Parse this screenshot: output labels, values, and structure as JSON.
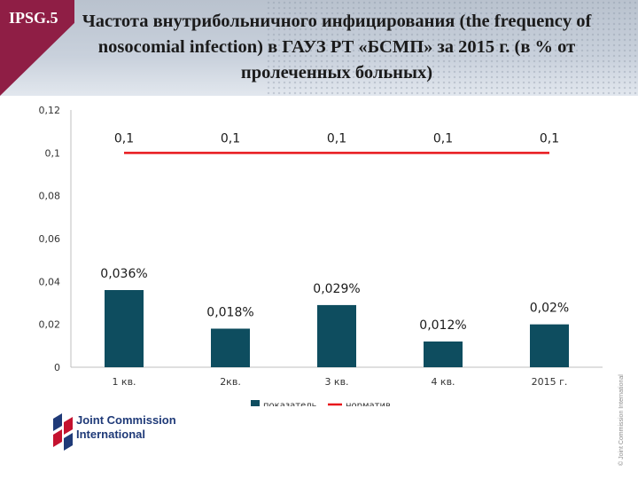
{
  "header": {
    "badge": "IPSG.5",
    "title": "Частота внутрибольничного инфицирования (the frequency of nosocomial infection) в ГАУЗ РТ «БСМП» за 2015 г. (в % от пролеченных больных)"
  },
  "colors": {
    "bar": "#0e4d5f",
    "line": "#e8161b",
    "accent": "#8f1e45"
  },
  "chart_data": {
    "type": "bar",
    "categories": [
      "1 кв.",
      "2кв.",
      "3 кв.",
      "4 кв.",
      "2015 г."
    ],
    "series": [
      {
        "name": "показатель",
        "type": "bar",
        "values": [
          0.036,
          0.018,
          0.029,
          0.012,
          0.02
        ],
        "labels": [
          "0,036%",
          "0,018%",
          "0,029%",
          "0,012%",
          "0,02%"
        ]
      },
      {
        "name": "норматив",
        "type": "line",
        "values": [
          0.1,
          0.1,
          0.1,
          0.1,
          0.1
        ],
        "labels": [
          "0,1",
          "0,1",
          "0,1",
          "0,1",
          "0,1"
        ]
      }
    ],
    "yticks": [
      "0",
      "0,02",
      "0,04",
      "0,06",
      "0,08",
      "0,1",
      "0,12"
    ],
    "ylim": [
      0,
      0.12
    ],
    "grid": false,
    "legend": "bottom"
  },
  "logo": {
    "line1": "Joint Commission",
    "line2": "International"
  },
  "copyright": "© Joint Commission International"
}
